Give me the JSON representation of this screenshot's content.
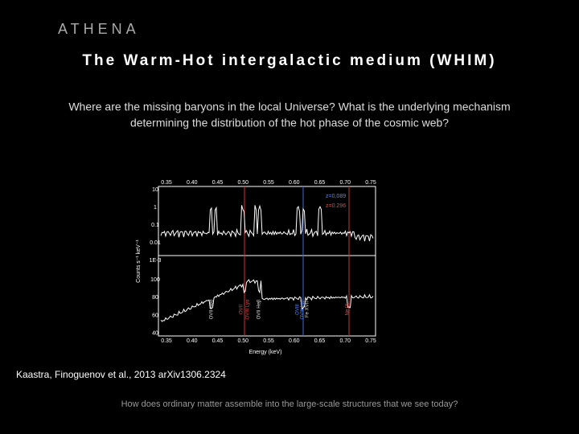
{
  "header": {
    "brand": "ATHENA",
    "title": "The Warm-Hot intergalactic medium (WHIM)"
  },
  "question": [
    "Where are the missing baryons in the local Universe? What is the underlying mechanism",
    "determining the distribution of the hot phase of the cosmic web?"
  ],
  "figure": {
    "top_ticks": [
      "0.35",
      "0.40",
      "0.45",
      "0.50",
      "0.55",
      "0.60",
      "0.65",
      "0.70",
      "0.75"
    ],
    "bottom_ticks": [
      "0.35",
      "0.40",
      "0.45",
      "0.50",
      "0.55",
      "0.60",
      "0.65",
      "0.70",
      "0.75"
    ],
    "upper_yticks": [
      "10",
      "1",
      "0.1",
      "0.01",
      "1E-3"
    ],
    "lower_yticks": [
      "100",
      "80",
      "60",
      "40"
    ],
    "ylabel": "Counts s⁻¹ keV⁻¹",
    "xlabel": "Energy (keV)",
    "legend": [
      "z=0.089",
      "z=0.296"
    ],
    "line_labels": [
      "OVII Heα",
      "OVII",
      "OVIII Lyα",
      "OVII Heβ",
      "OVIII",
      "OVIII Lyβ",
      "Fe XVII",
      "Ne IX"
    ]
  },
  "citation": "Kaastra, Finoguenov et al., 2013 arXiv1306.2324",
  "footer": "How does ordinary matter assemble into the large-scale structures that we see today?"
}
